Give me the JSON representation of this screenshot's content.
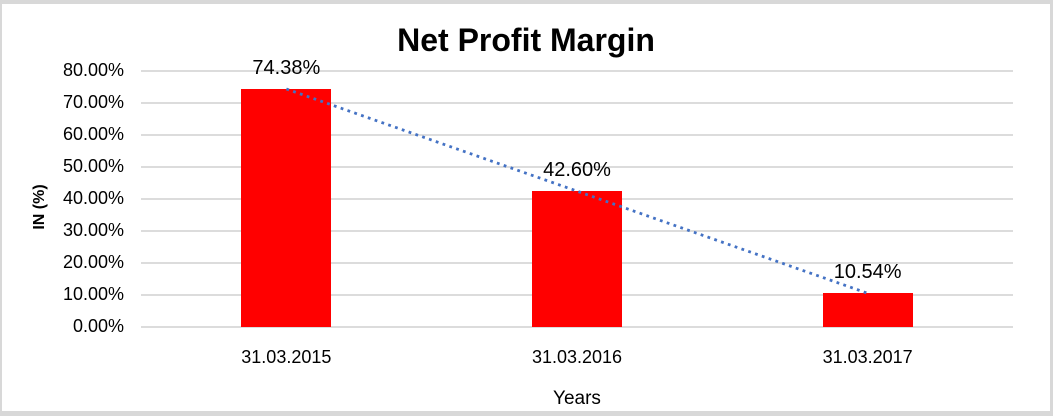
{
  "chart_data": {
    "type": "bar",
    "title": "Net Profit Margin",
    "xlabel": "Years",
    "ylabel": "IN (%)",
    "categories": [
      "31.03.2015",
      "31.03.2016",
      "31.03.2017"
    ],
    "values": [
      74.38,
      42.6,
      10.54
    ],
    "data_labels": [
      "74.38%",
      "42.60%",
      "10.54%"
    ],
    "ylim": [
      0,
      80
    ],
    "ytick_step": 10,
    "ytick_labels": [
      "80.00%",
      "70.00%",
      "60.00%",
      "50.00%",
      "40.00%",
      "30.00%",
      "20.00%",
      "10.00%",
      "0.00%"
    ],
    "grid": true,
    "legend": "none",
    "bar_color": "#FF0000",
    "gridline_color": "#DCDCDC",
    "text_color": "#000000",
    "frame_border_color": "#D8D8D8",
    "trendline": {
      "type": "linear",
      "style": "dotted",
      "color": "#4472C4",
      "start_value": 74.38,
      "end_value": 10.54
    }
  }
}
